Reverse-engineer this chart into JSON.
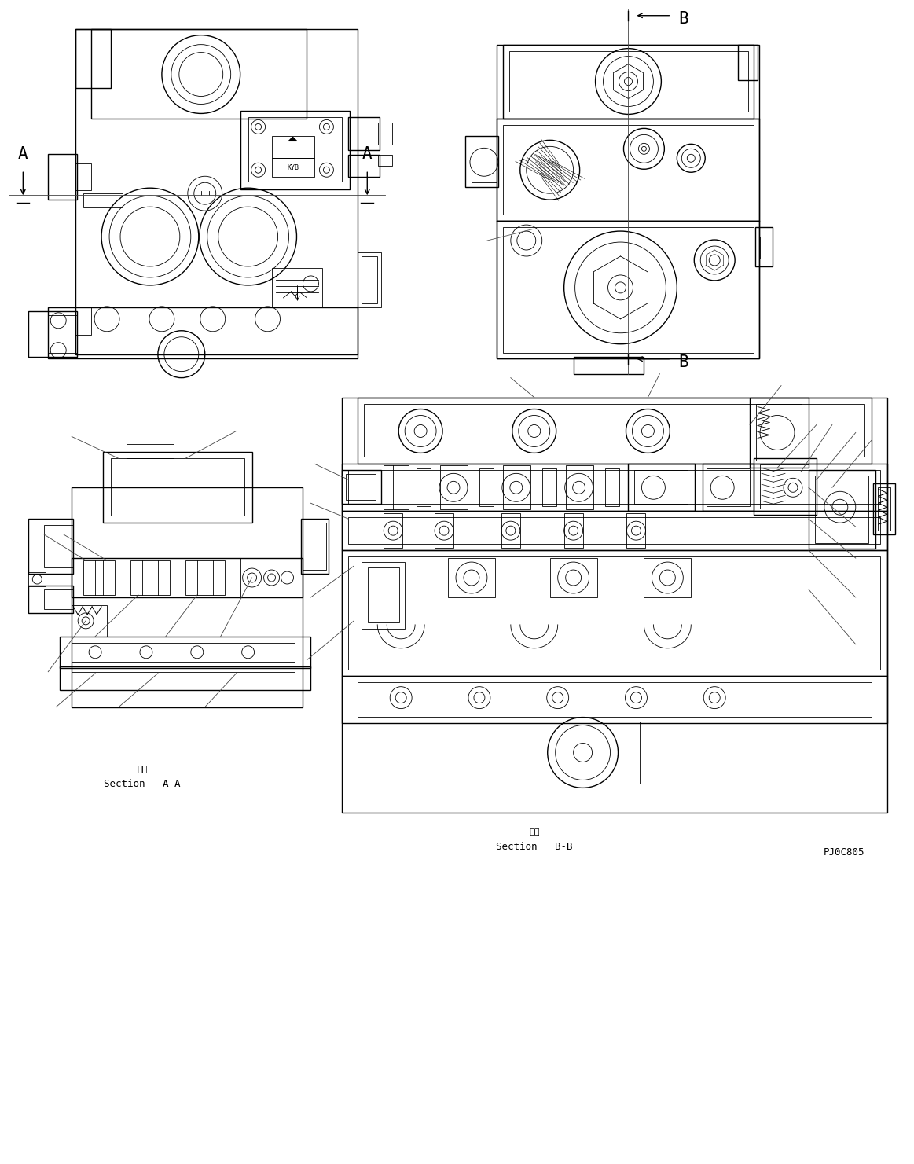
{
  "background_color": "#ffffff",
  "line_color": "#000000",
  "title_ref": "PJ0C805",
  "section_aa_label": "Section   A-A",
  "section_bb_label": "Section   B-B",
  "kanji_label": "断面",
  "label_A": "A",
  "label_B": "B",
  "figure_width": 11.63,
  "figure_height": 14.81,
  "dpi": 100
}
